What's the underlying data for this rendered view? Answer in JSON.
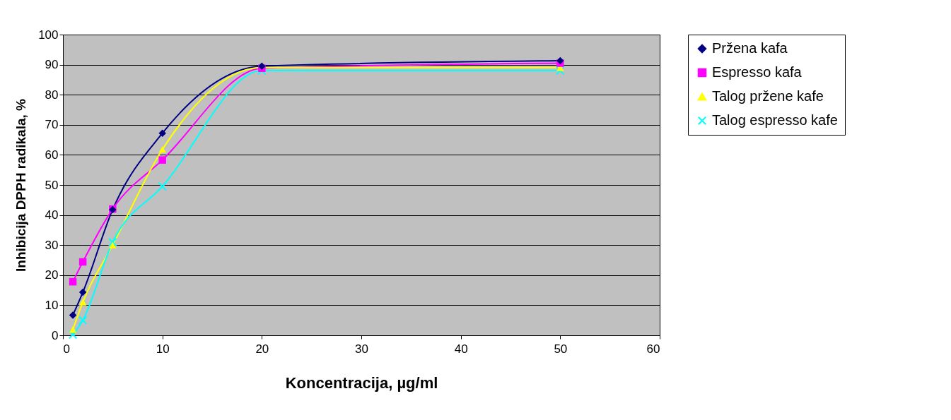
{
  "chart_data": {
    "type": "line",
    "xlabel": "Koncentracija, µg/ml",
    "ylabel": "Inhibicija DPPH radikala, %",
    "x": [
      1,
      2,
      5,
      10,
      20,
      50
    ],
    "series": [
      {
        "name": "Pržena kafa",
        "color": "#000080",
        "marker": "diamond",
        "values": [
          6.7,
          14.3,
          41.8,
          67.2,
          89.5,
          91.3
        ]
      },
      {
        "name": "Espresso kafa",
        "color": "#ff00ff",
        "marker": "square",
        "values": [
          17.8,
          24.4,
          42,
          58.3,
          88.8,
          90.5
        ]
      },
      {
        "name": "Talog pržene kafe",
        "color": "#ffff00",
        "marker": "triangle",
        "values": [
          1.9,
          11,
          30,
          61.8,
          89,
          89
        ]
      },
      {
        "name": "Talog espresso kafe",
        "color": "#00ffff",
        "marker": "cross",
        "values": [
          0.2,
          5,
          31,
          49.5,
          88,
          88
        ]
      }
    ],
    "xlim": [
      0,
      60
    ],
    "xticks": [
      0,
      10,
      20,
      30,
      40,
      50,
      60
    ],
    "ylim": [
      0,
      100
    ],
    "yticks": [
      0,
      10,
      20,
      30,
      40,
      50,
      60,
      70,
      80,
      90,
      100
    ],
    "grid": "y",
    "legend": "right",
    "line_style": "solid"
  }
}
